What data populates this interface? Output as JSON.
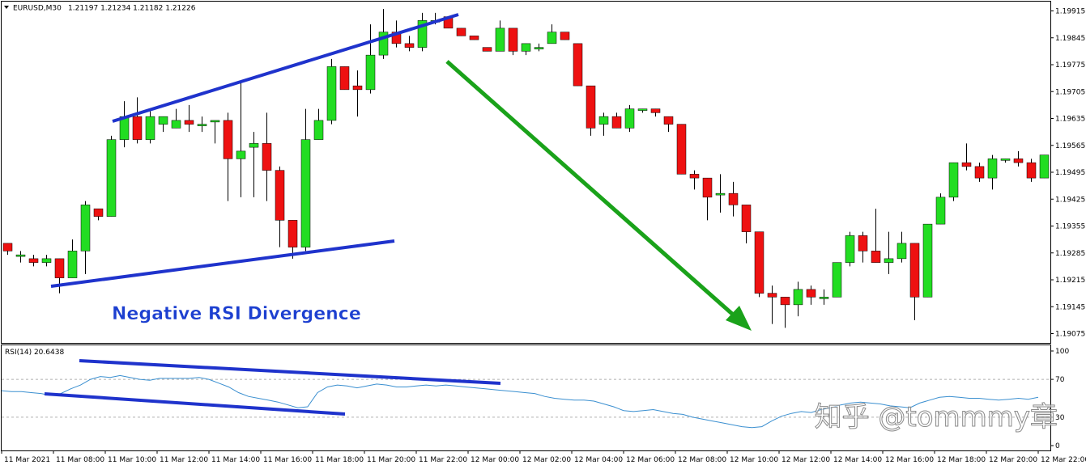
{
  "header": {
    "symbol_label": "EURUSD,M30",
    "ohlc_label": "1.21197 1.21234 1.21182 1.21226"
  },
  "annotation": {
    "title": "Negative RSI Divergence"
  },
  "watermark": "知乎 @tommmy章",
  "colors": {
    "bull": "#22dd22",
    "bear": "#ee1111",
    "trendline": "#1f33cc",
    "arrow": "#1aa21a",
    "rsi_line": "#3a8fd0",
    "title_text": "#1c3fd0"
  },
  "chart_data": [
    {
      "type": "candlestick",
      "symbol": "EURUSD",
      "timeframe": "M30",
      "y_ticks": [
        "1.19915",
        "1.19845",
        "1.19775",
        "1.19705",
        "1.19635",
        "1.19565",
        "1.19495",
        "1.19425",
        "1.19355",
        "1.19285",
        "1.19215",
        "1.19145",
        "1.19075"
      ],
      "ylim": [
        1.19055,
        1.19935
      ],
      "x_tick_labels": [
        "11 Mar 2021",
        "11 Mar 08:00",
        "11 Mar 10:00",
        "11 Mar 12:00",
        "11 Mar 14:00",
        "11 Mar 16:00",
        "11 Mar 18:00",
        "11 Mar 20:00",
        "11 Mar 22:00",
        "12 Mar 00:00",
        "12 Mar 02:00",
        "12 Mar 04:00",
        "12 Mar 06:00",
        "12 Mar 08:00",
        "12 Mar 10:00",
        "12 Mar 12:00",
        "12 Mar 14:00",
        "12 Mar 16:00",
        "12 Mar 18:00",
        "12 Mar 20:00",
        "12 Mar 22:00"
      ],
      "candles": [
        {
          "o": 1.1931,
          "h": 1.1931,
          "l": 1.1928,
          "c": 1.1929
        },
        {
          "o": 1.1928,
          "h": 1.1929,
          "l": 1.1926,
          "c": 1.1928
        },
        {
          "o": 1.1927,
          "h": 1.1928,
          "l": 1.1925,
          "c": 1.1926
        },
        {
          "o": 1.1926,
          "h": 1.1928,
          "l": 1.1925,
          "c": 1.1927
        },
        {
          "o": 1.1927,
          "h": 1.1927,
          "l": 1.1918,
          "c": 1.1922
        },
        {
          "o": 1.1922,
          "h": 1.1932,
          "l": 1.1922,
          "c": 1.1929
        },
        {
          "o": 1.1929,
          "h": 1.1942,
          "l": 1.1923,
          "c": 1.1941
        },
        {
          "o": 1.194,
          "h": 1.194,
          "l": 1.1937,
          "c": 1.1938
        },
        {
          "o": 1.1938,
          "h": 1.1959,
          "l": 1.1938,
          "c": 1.1958
        },
        {
          "o": 1.1958,
          "h": 1.1968,
          "l": 1.1956,
          "c": 1.1964
        },
        {
          "o": 1.1964,
          "h": 1.1969,
          "l": 1.1957,
          "c": 1.1958
        },
        {
          "o": 1.1958,
          "h": 1.1966,
          "l": 1.1957,
          "c": 1.1964
        },
        {
          "o": 1.1962,
          "h": 1.1964,
          "l": 1.196,
          "c": 1.1964
        },
        {
          "o": 1.1961,
          "h": 1.1966,
          "l": 1.1961,
          "c": 1.1963
        },
        {
          "o": 1.1963,
          "h": 1.1967,
          "l": 1.196,
          "c": 1.1962
        },
        {
          "o": 1.1962,
          "h": 1.1964,
          "l": 1.196,
          "c": 1.1962
        },
        {
          "o": 1.1963,
          "h": 1.1963,
          "l": 1.1957,
          "c": 1.1963
        },
        {
          "o": 1.1963,
          "h": 1.1965,
          "l": 1.1942,
          "c": 1.1953
        },
        {
          "o": 1.1953,
          "h": 1.1973,
          "l": 1.1943,
          "c": 1.1955
        },
        {
          "o": 1.1956,
          "h": 1.196,
          "l": 1.1943,
          "c": 1.1957
        },
        {
          "o": 1.1957,
          "h": 1.1965,
          "l": 1.1942,
          "c": 1.195
        },
        {
          "o": 1.195,
          "h": 1.1951,
          "l": 1.193,
          "c": 1.1937
        },
        {
          "o": 1.1937,
          "h": 1.1937,
          "l": 1.1927,
          "c": 1.193
        },
        {
          "o": 1.193,
          "h": 1.1966,
          "l": 1.1929,
          "c": 1.1958
        },
        {
          "o": 1.1958,
          "h": 1.1966,
          "l": 1.1958,
          "c": 1.1963
        },
        {
          "o": 1.1963,
          "h": 1.1979,
          "l": 1.1962,
          "c": 1.1977
        },
        {
          "o": 1.1977,
          "h": 1.1977,
          "l": 1.1971,
          "c": 1.1971
        },
        {
          "o": 1.1972,
          "h": 1.1976,
          "l": 1.1964,
          "c": 1.1971
        },
        {
          "o": 1.1971,
          "h": 1.1988,
          "l": 1.197,
          "c": 1.198
        },
        {
          "o": 1.198,
          "h": 1.1992,
          "l": 1.1979,
          "c": 1.1986
        },
        {
          "o": 1.1986,
          "h": 1.1989,
          "l": 1.1982,
          "c": 1.1983
        },
        {
          "o": 1.1983,
          "h": 1.1985,
          "l": 1.1981,
          "c": 1.1982
        },
        {
          "o": 1.1982,
          "h": 1.1991,
          "l": 1.1981,
          "c": 1.1989
        },
        {
          "o": 1.1989,
          "h": 1.1991,
          "l": 1.1988,
          "c": 1.1989
        },
        {
          "o": 1.199,
          "h": 1.199,
          "l": 1.1987,
          "c": 1.1987
        },
        {
          "o": 1.1987,
          "h": 1.1987,
          "l": 1.1985,
          "c": 1.1985
        },
        {
          "o": 1.1985,
          "h": 1.1985,
          "l": 1.1984,
          "c": 1.1984
        },
        {
          "o": 1.1982,
          "h": 1.1982,
          "l": 1.1981,
          "c": 1.1981
        },
        {
          "o": 1.1981,
          "h": 1.1989,
          "l": 1.1981,
          "c": 1.1987
        },
        {
          "o": 1.1987,
          "h": 1.1987,
          "l": 1.198,
          "c": 1.1981
        },
        {
          "o": 1.1981,
          "h": 1.1983,
          "l": 1.198,
          "c": 1.1983
        },
        {
          "o": 1.1982,
          "h": 1.1983,
          "l": 1.1981,
          "c": 1.1982
        },
        {
          "o": 1.1983,
          "h": 1.1988,
          "l": 1.1983,
          "c": 1.1986
        },
        {
          "o": 1.1986,
          "h": 1.1986,
          "l": 1.1984,
          "c": 1.1984
        },
        {
          "o": 1.1983,
          "h": 1.1983,
          "l": 1.1972,
          "c": 1.1972
        },
        {
          "o": 1.1972,
          "h": 1.1972,
          "l": 1.1959,
          "c": 1.1961
        },
        {
          "o": 1.1962,
          "h": 1.1965,
          "l": 1.1959,
          "c": 1.1964
        },
        {
          "o": 1.1964,
          "h": 1.1965,
          "l": 1.1961,
          "c": 1.1961
        },
        {
          "o": 1.1961,
          "h": 1.1967,
          "l": 1.196,
          "c": 1.1966
        },
        {
          "o": 1.1966,
          "h": 1.1966,
          "l": 1.1965,
          "c": 1.1966
        },
        {
          "o": 1.1966,
          "h": 1.1966,
          "l": 1.1964,
          "c": 1.1965
        },
        {
          "o": 1.1964,
          "h": 1.1964,
          "l": 1.196,
          "c": 1.1962
        },
        {
          "o": 1.1962,
          "h": 1.1962,
          "l": 1.1949,
          "c": 1.1949
        },
        {
          "o": 1.1949,
          "h": 1.195,
          "l": 1.1945,
          "c": 1.1948
        },
        {
          "o": 1.1948,
          "h": 1.1948,
          "l": 1.1937,
          "c": 1.1943
        },
        {
          "o": 1.1944,
          "h": 1.1949,
          "l": 1.1939,
          "c": 1.1944
        },
        {
          "o": 1.1944,
          "h": 1.1947,
          "l": 1.1938,
          "c": 1.1941
        },
        {
          "o": 1.1941,
          "h": 1.1941,
          "l": 1.1931,
          "c": 1.1934
        },
        {
          "o": 1.1934,
          "h": 1.1934,
          "l": 1.1917,
          "c": 1.1918
        },
        {
          "o": 1.1918,
          "h": 1.192,
          "l": 1.191,
          "c": 1.1917
        },
        {
          "o": 1.1917,
          "h": 1.1917,
          "l": 1.1909,
          "c": 1.1915
        },
        {
          "o": 1.1915,
          "h": 1.1921,
          "l": 1.1912,
          "c": 1.1919
        },
        {
          "o": 1.1919,
          "h": 1.192,
          "l": 1.1915,
          "c": 1.1917
        },
        {
          "o": 1.1917,
          "h": 1.1919,
          "l": 1.1915,
          "c": 1.1917
        },
        {
          "o": 1.1917,
          "h": 1.1926,
          "l": 1.1917,
          "c": 1.1926
        },
        {
          "o": 1.1926,
          "h": 1.1934,
          "l": 1.1925,
          "c": 1.1933
        },
        {
          "o": 1.1933,
          "h": 1.1934,
          "l": 1.1926,
          "c": 1.1929
        },
        {
          "o": 1.1929,
          "h": 1.194,
          "l": 1.1926,
          "c": 1.1926
        },
        {
          "o": 1.1926,
          "h": 1.1934,
          "l": 1.1923,
          "c": 1.1927
        },
        {
          "o": 1.1927,
          "h": 1.1934,
          "l": 1.1926,
          "c": 1.1931
        },
        {
          "o": 1.1931,
          "h": 1.1931,
          "l": 1.1911,
          "c": 1.1917
        },
        {
          "o": 1.1917,
          "h": 1.1936,
          "l": 1.1917,
          "c": 1.1936
        },
        {
          "o": 1.1936,
          "h": 1.1944,
          "l": 1.1936,
          "c": 1.1943
        },
        {
          "o": 1.1943,
          "h": 1.1952,
          "l": 1.1942,
          "c": 1.1952
        },
        {
          "o": 1.1952,
          "h": 1.1957,
          "l": 1.195,
          "c": 1.1951
        },
        {
          "o": 1.1951,
          "h": 1.1952,
          "l": 1.1947,
          "c": 1.1948
        },
        {
          "o": 1.1948,
          "h": 1.1954,
          "l": 1.1945,
          "c": 1.1953
        },
        {
          "o": 1.1953,
          "h": 1.1953,
          "l": 1.1952,
          "c": 1.1953
        },
        {
          "o": 1.1953,
          "h": 1.1955,
          "l": 1.1951,
          "c": 1.1952
        },
        {
          "o": 1.1952,
          "h": 1.1953,
          "l": 1.1947,
          "c": 1.1948
        },
        {
          "o": 1.1948,
          "h": 1.1954,
          "l": 1.1948,
          "c": 1.1954
        }
      ]
    },
    {
      "type": "line",
      "title": "RSI(14) 20.6438",
      "ylim": [
        0,
        100
      ],
      "y_ticks": [
        "100",
        "70",
        "30",
        "0"
      ],
      "levels": [
        70,
        30
      ],
      "values": [
        58,
        57,
        57,
        56,
        55,
        53,
        55,
        60,
        64,
        70,
        73,
        72,
        74,
        72,
        70,
        69,
        71,
        71,
        71,
        71,
        72,
        70,
        66,
        62,
        56,
        52,
        50,
        48,
        46,
        43,
        40,
        41,
        56,
        62,
        64,
        63,
        61,
        63,
        65,
        64,
        62,
        62,
        63,
        64,
        63,
        64,
        63,
        62,
        61,
        60,
        59,
        58,
        57,
        56,
        55,
        52,
        50,
        49,
        48,
        48,
        47,
        44,
        41,
        37,
        36,
        37,
        38,
        36,
        34,
        33,
        30,
        28,
        26,
        24,
        22,
        20,
        19,
        20,
        26,
        31,
        34,
        36,
        35,
        38,
        40,
        43,
        45,
        46,
        45,
        44,
        42,
        41,
        40,
        45,
        48,
        51,
        52,
        51,
        50,
        50,
        49,
        48,
        49,
        50,
        49,
        51
      ]
    }
  ]
}
